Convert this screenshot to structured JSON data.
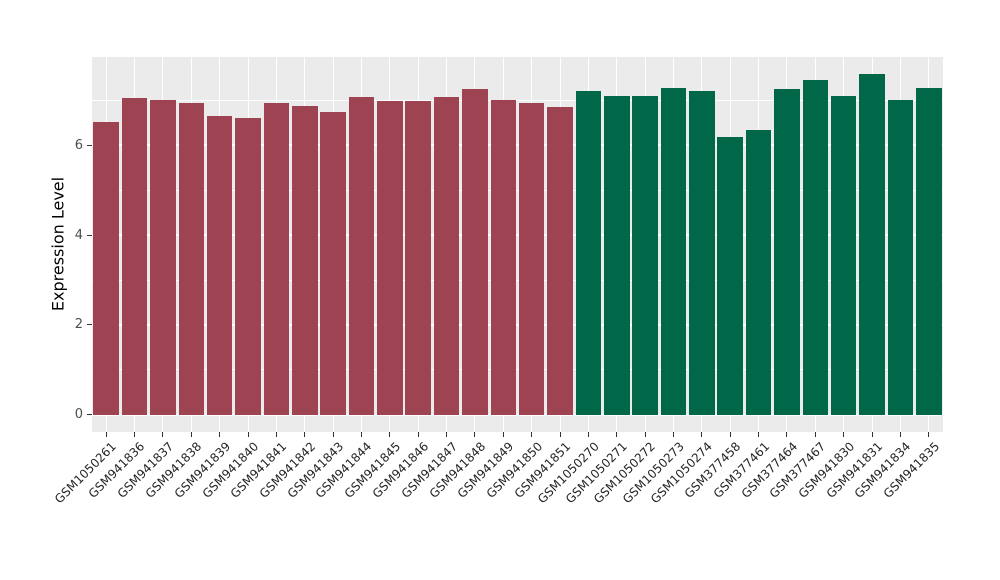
{
  "chart_data": {
    "type": "bar",
    "title": "",
    "xlabel": "",
    "ylabel": "Expression Level",
    "categories": [
      "GSM1050261",
      "GSM941836",
      "GSM941837",
      "GSM941838",
      "GSM941839",
      "GSM941840",
      "GSM941841",
      "GSM941842",
      "GSM941843",
      "GSM941844",
      "GSM941845",
      "GSM941846",
      "GSM941847",
      "GSM941848",
      "GSM941849",
      "GSM941850",
      "GSM941851",
      "GSM1050270",
      "GSM1050271",
      "GSM1050272",
      "GSM1050273",
      "GSM1050274",
      "GSM377458",
      "GSM377461",
      "GSM377464",
      "GSM377467",
      "GSM941830",
      "GSM941831",
      "GSM941834",
      "GSM941835"
    ],
    "values": [
      6.52,
      7.05,
      7.0,
      6.94,
      6.64,
      6.61,
      6.93,
      6.87,
      6.74,
      7.06,
      6.98,
      6.98,
      7.07,
      7.24,
      7.01,
      6.94,
      6.85,
      7.21,
      7.1,
      7.1,
      7.26,
      7.2,
      6.19,
      6.33,
      7.24,
      7.44,
      7.1,
      7.58,
      7.01,
      7.26
    ],
    "groups": [
      "group1",
      "group1",
      "group1",
      "group1",
      "group1",
      "group1",
      "group1",
      "group1",
      "group1",
      "group1",
      "group1",
      "group1",
      "group1",
      "group1",
      "group1",
      "group1",
      "group1",
      "group2",
      "group2",
      "group2",
      "group2",
      "group2",
      "group2",
      "group2",
      "group2",
      "group2",
      "group2",
      "group2",
      "group2",
      "group2"
    ],
    "group_colors": {
      "group1": "#9E4352",
      "group2": "#006848"
    },
    "ylim": [
      -0.38,
      7.96
    ],
    "yticks": [
      0,
      2,
      4,
      6
    ],
    "minor_yticks": [
      1,
      3,
      5,
      7
    ],
    "grid": true,
    "legend_position": "none",
    "panel_bg": "#EBEBEB",
    "grid_color": "#FFFFFF",
    "tick_color": "#333333",
    "tick_label_color": "#4D4D4D",
    "x_tick_label_color": "#262626",
    "bar_width_ratio": 0.9
  }
}
